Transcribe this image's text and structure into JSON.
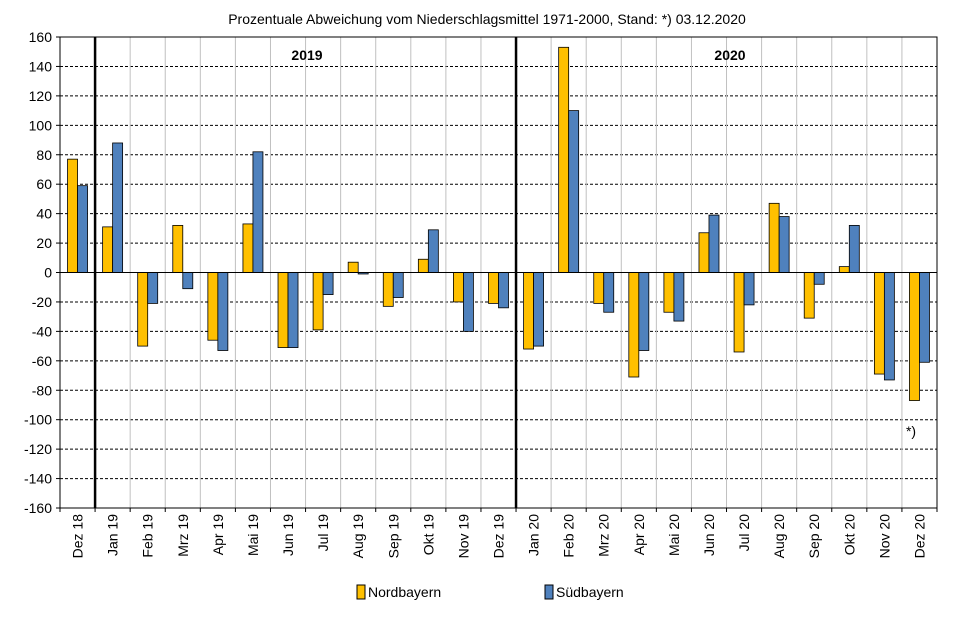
{
  "chart_data": {
    "type": "bar",
    "title": "Prozentuale  Abweichung vom Niederschlagsmittel 1971-2000, Stand: *) 03.12.2020",
    "xlabel": "",
    "ylabel": "",
    "ylim": [
      -160,
      160
    ],
    "yticks": [
      "160",
      "140",
      "120",
      "100",
      "80",
      "60",
      "40",
      "20",
      "0",
      "-20",
      "-40",
      "-60",
      "-80",
      "-100",
      "-120",
      "-140",
      "-160"
    ],
    "grid": true,
    "legend_position": "bottom",
    "categories": [
      "Dez 18",
      "Jan 19",
      "Feb 19",
      "Mrz 19",
      "Apr 19",
      "Mai 19",
      "Jun 19",
      "Jul 19",
      "Aug 19",
      "Sep 19",
      "Okt 19",
      "Nov 19",
      "Dez 19",
      "Jan 20",
      "Feb 20",
      "Mrz 20",
      "Apr 20",
      "Mai 20",
      "Jun 20",
      "Jul 20",
      "Aug 20",
      "Sep 20",
      "Okt 20",
      "Nov 20",
      "Dez 20"
    ],
    "series": [
      {
        "name": "Nordbayern",
        "color": "#ffc000",
        "values": [
          77,
          31,
          -50,
          32,
          -46,
          33,
          -51,
          -39,
          7,
          -23,
          9,
          -20,
          -21,
          -52,
          153,
          -21,
          -71,
          -27,
          27,
          -54,
          47,
          -31,
          4,
          -69,
          -87
        ]
      },
      {
        "name": "Südbayern",
        "color": "#4f81bd",
        "values": [
          59,
          88,
          -21,
          -11,
          -53,
          82,
          -51,
          -15,
          -1,
          -17,
          29,
          -40,
          -24,
          -50,
          110,
          -27,
          -53,
          -33,
          39,
          -22,
          38,
          -8,
          32,
          -73,
          -61
        ]
      }
    ],
    "year_labels": [
      "2019",
      "2020"
    ],
    "year_separators_after": [
      "Dez 18",
      "Dez 19"
    ],
    "footnote_marker": "*)"
  }
}
